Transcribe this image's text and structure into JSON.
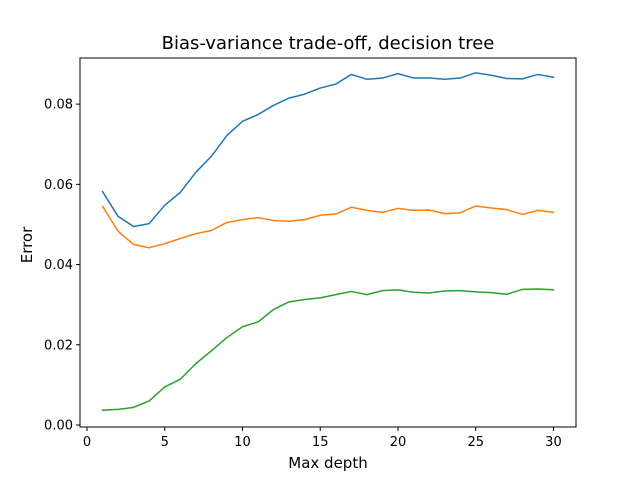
{
  "chart_data": {
    "type": "line",
    "title": "Bias-variance trade-off, decision tree",
    "xlabel": "Max depth",
    "ylabel": "Error",
    "xlim": [
      -0.45,
      31.45
    ],
    "ylim": [
      -0.0005,
      0.0915
    ],
    "xticks": [
      0,
      5,
      10,
      15,
      20,
      25,
      30
    ],
    "xtick_labels": [
      "0",
      "5",
      "10",
      "15",
      "20",
      "25",
      "30"
    ],
    "yticks": [
      0.0,
      0.02,
      0.04,
      0.06,
      0.08
    ],
    "ytick_labels": [
      "0.00",
      "0.02",
      "0.04",
      "0.06",
      "0.08"
    ],
    "grid": false,
    "legend": "none",
    "x": [
      1,
      2,
      3,
      4,
      5,
      6,
      7,
      8,
      9,
      10,
      11,
      12,
      13,
      14,
      15,
      16,
      17,
      18,
      19,
      20,
      21,
      22,
      23,
      24,
      25,
      26,
      27,
      28,
      29,
      30
    ],
    "series": [
      {
        "color": "#1f77b4",
        "values": [
          0.0582,
          0.052,
          0.0495,
          0.0502,
          0.0548,
          0.058,
          0.063,
          0.067,
          0.0722,
          0.0757,
          0.0774,
          0.0797,
          0.0815,
          0.0825,
          0.084,
          0.085,
          0.0874,
          0.0862,
          0.0865,
          0.0876,
          0.0865,
          0.0865,
          0.0862,
          0.0865,
          0.0878,
          0.0872,
          0.0864,
          0.0863,
          0.0874,
          0.0867
        ]
      },
      {
        "color": "#ff7f0e",
        "values": [
          0.0545,
          0.0483,
          0.045,
          0.0442,
          0.0452,
          0.0465,
          0.0477,
          0.0485,
          0.0505,
          0.0512,
          0.0517,
          0.051,
          0.0508,
          0.0512,
          0.0523,
          0.0526,
          0.0543,
          0.0535,
          0.053,
          0.054,
          0.0535,
          0.0536,
          0.0527,
          0.0529,
          0.0546,
          0.0541,
          0.0537,
          0.0525,
          0.0535,
          0.053
        ]
      },
      {
        "color": "#2ca02c",
        "values": [
          0.0037,
          0.0039,
          0.0044,
          0.006,
          0.0095,
          0.0114,
          0.0153,
          0.0185,
          0.0218,
          0.0245,
          0.0257,
          0.0288,
          0.0307,
          0.0313,
          0.0317,
          0.0325,
          0.0333,
          0.0325,
          0.0335,
          0.0337,
          0.0331,
          0.0329,
          0.0334,
          0.0335,
          0.0332,
          0.033,
          0.0326,
          0.0338,
          0.0339,
          0.0337
        ]
      }
    ]
  }
}
